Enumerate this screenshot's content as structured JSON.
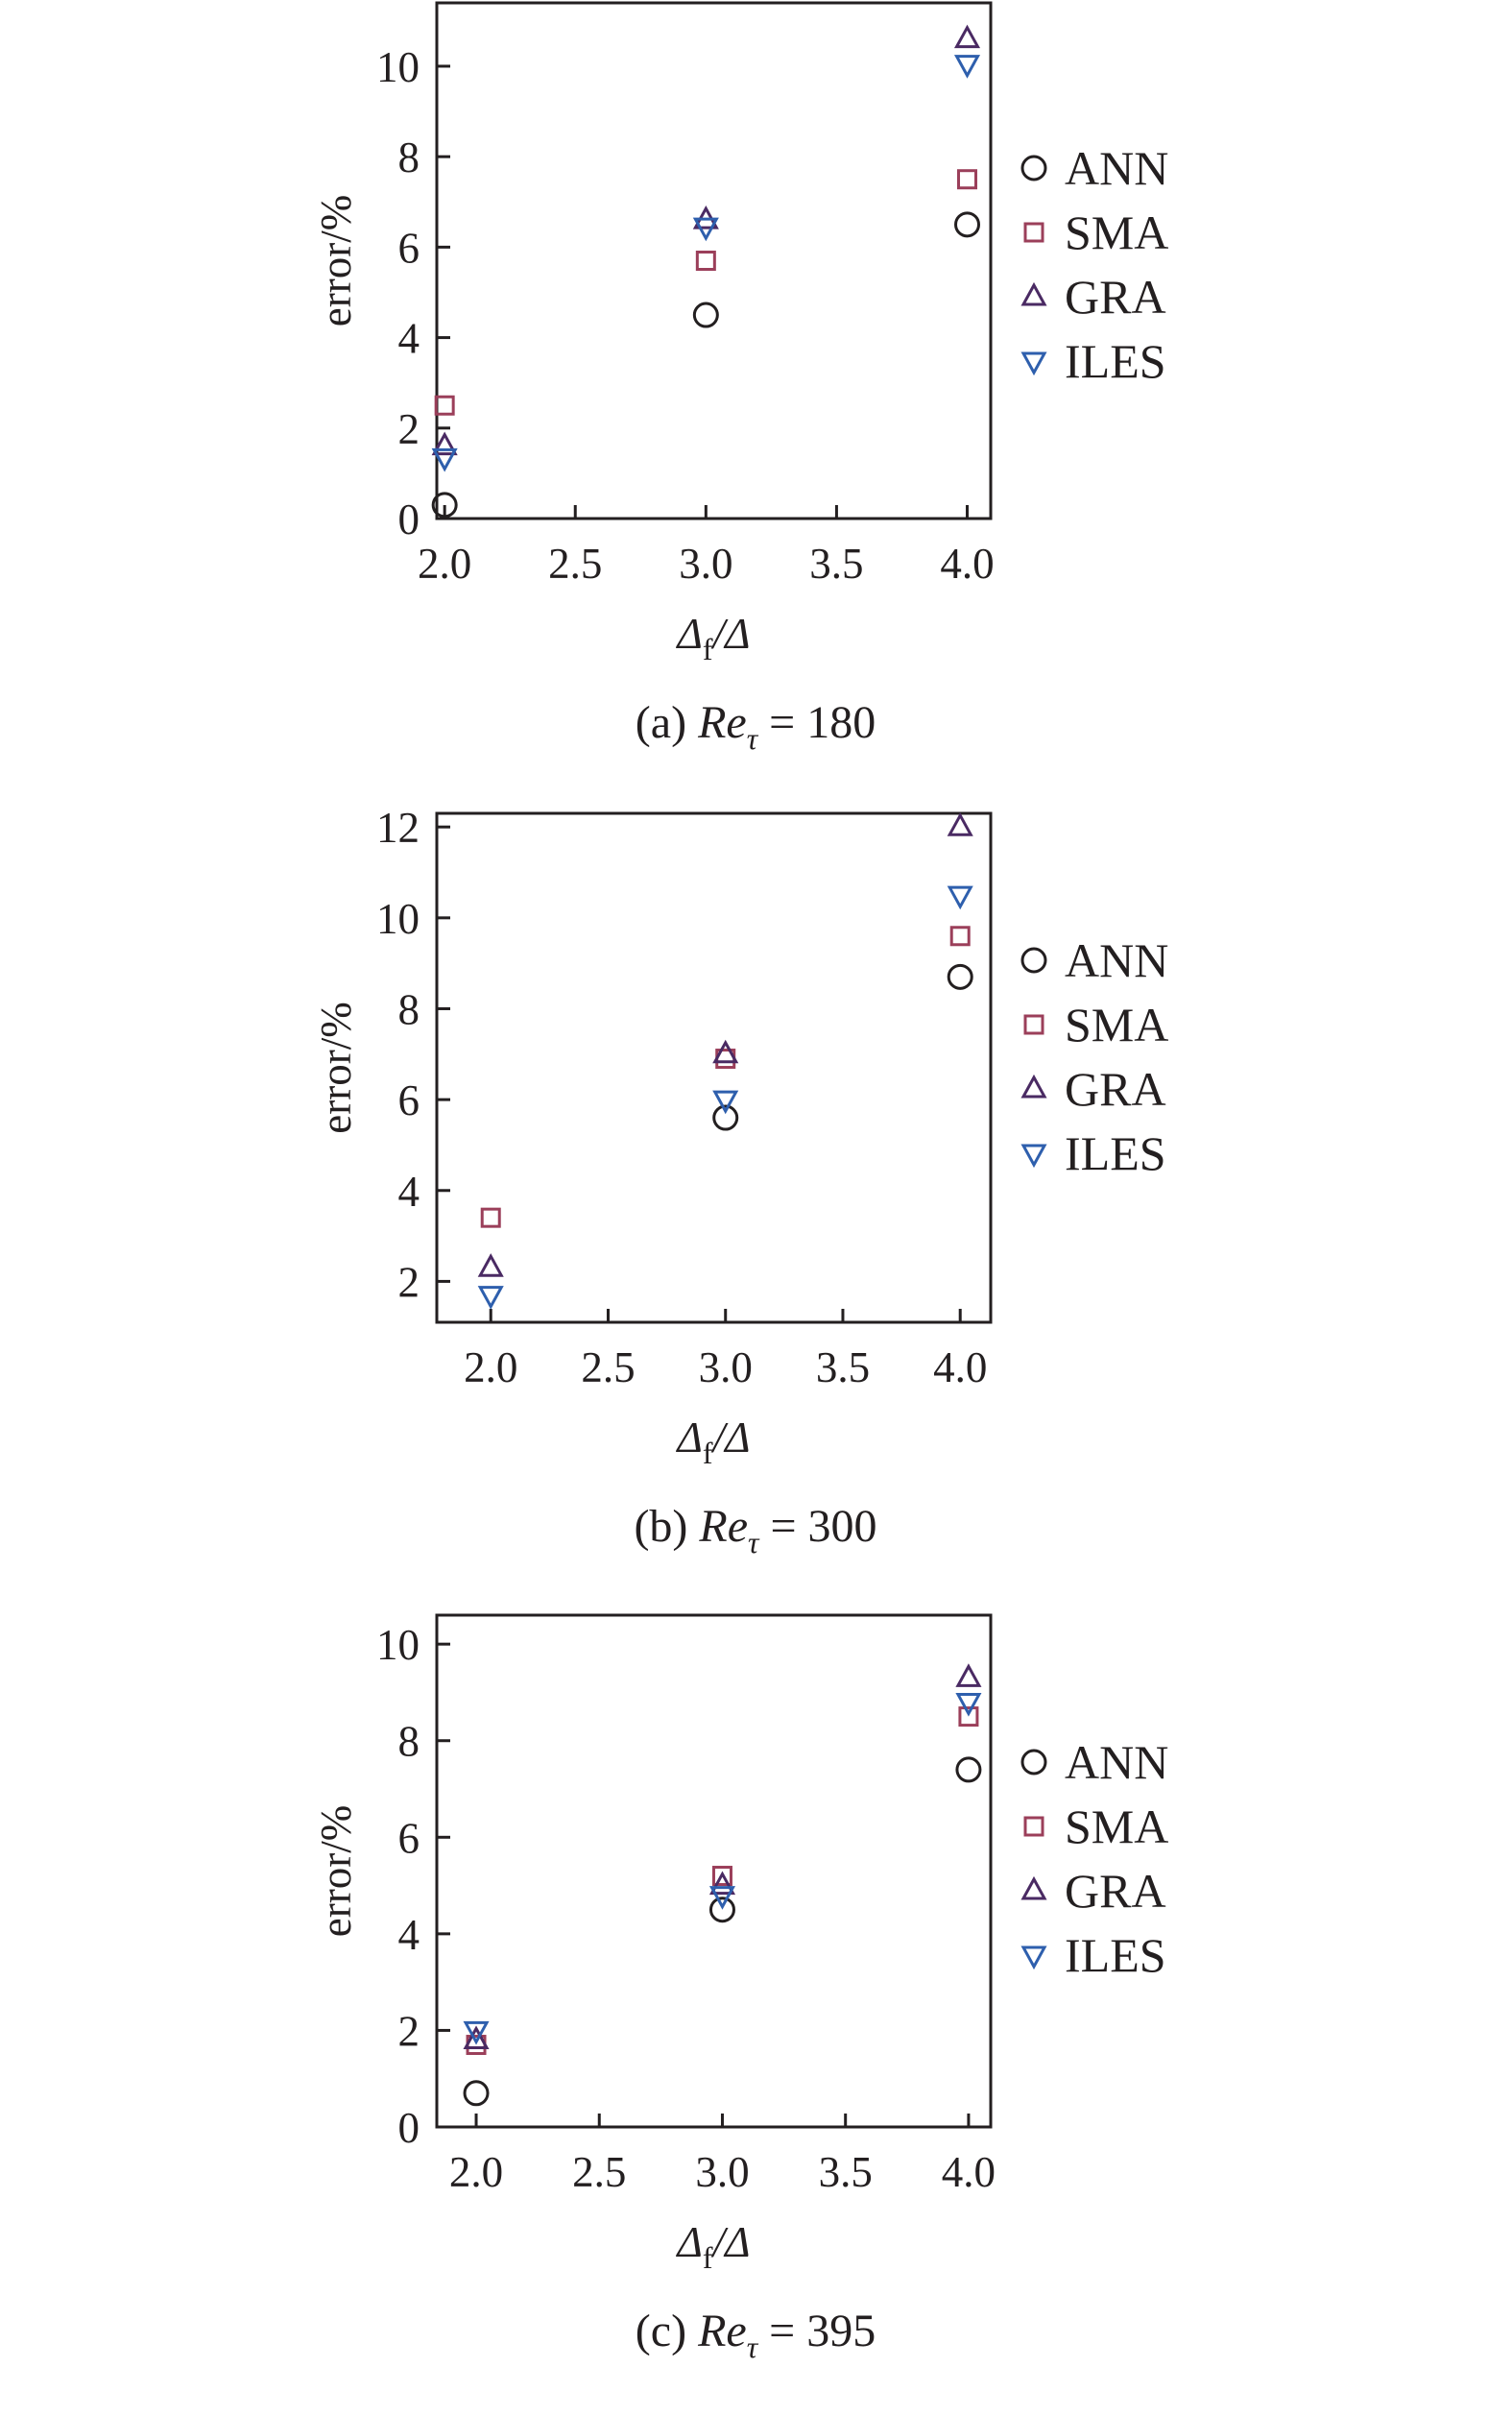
{
  "colors": {
    "ANN": "#231f20",
    "SMA": "#9b3f5a",
    "GRA": "#4a2a63",
    "ILES": "#2e5fad",
    "axis": "#231f20"
  },
  "chart_data": [
    {
      "type": "scatter",
      "panel": "a",
      "caption_prefix": "(a) ",
      "caption_var": "Re",
      "caption_sub": "τ",
      "caption_value": " = 180",
      "ylabel": "error/%",
      "xlabel_main": "Δ",
      "xlabel_sub": "f",
      "xlabel_den": "/Δ",
      "xlim": [
        1.97,
        4.09
      ],
      "ylim": [
        0,
        11.4
      ],
      "xticks": [
        2.0,
        2.5,
        3.0,
        3.5,
        4.0
      ],
      "xtick_labels": [
        "2.0",
        "2.5",
        "3.0",
        "3.5",
        "4.0"
      ],
      "yticks": [
        0,
        2,
        4,
        6,
        8,
        10
      ],
      "ytick_labels": [
        "0",
        "2",
        "4",
        "6",
        "8",
        "10"
      ],
      "legend": "right",
      "x": [
        2.0,
        3.0,
        4.0
      ],
      "series": [
        {
          "name": "ANN",
          "marker": "circle",
          "values": [
            0.3,
            4.5,
            6.5
          ]
        },
        {
          "name": "SMA",
          "marker": "square",
          "values": [
            2.5,
            5.7,
            7.5
          ]
        },
        {
          "name": "GRA",
          "marker": "triangle-up",
          "values": [
            1.6,
            6.6,
            10.6
          ]
        },
        {
          "name": "ILES",
          "marker": "triangle-down",
          "values": [
            1.35,
            6.45,
            10.05
          ]
        }
      ]
    },
    {
      "type": "scatter",
      "panel": "b",
      "caption_prefix": "(b) ",
      "caption_var": "Re",
      "caption_sub": "τ",
      "caption_value": " = 300",
      "ylabel": "error/%",
      "xlabel_main": "Δ",
      "xlabel_sub": "f",
      "xlabel_den": "/Δ",
      "xlim": [
        1.77,
        4.13
      ],
      "ylim": [
        1.1,
        12.3
      ],
      "xticks": [
        2.0,
        2.5,
        3.0,
        3.5,
        4.0
      ],
      "xtick_labels": [
        "2.0",
        "2.5",
        "3.0",
        "3.5",
        "4.0"
      ],
      "yticks": [
        2,
        4,
        6,
        8,
        10,
        12
      ],
      "ytick_labels": [
        "2",
        "4",
        "6",
        "8",
        "10",
        "12"
      ],
      "legend": "right",
      "x": [
        2.0,
        3.0,
        4.0
      ],
      "series": [
        {
          "name": "ANN",
          "marker": "circle",
          "values": [
            null,
            5.6,
            8.7
          ]
        },
        {
          "name": "SMA",
          "marker": "square",
          "values": [
            3.4,
            6.9,
            9.6
          ]
        },
        {
          "name": "GRA",
          "marker": "triangle-up",
          "values": [
            2.3,
            7.0,
            12.0
          ]
        },
        {
          "name": "ILES",
          "marker": "triangle-down",
          "values": [
            1.7,
            6.0,
            10.5
          ]
        }
      ]
    },
    {
      "type": "scatter",
      "panel": "c",
      "caption_prefix": "(c) ",
      "caption_var": "Re",
      "caption_sub": "τ",
      "caption_value": " = 395",
      "ylabel": "error/%",
      "xlabel_main": "Δ",
      "xlabel_sub": "f",
      "xlabel_den": "/Δ",
      "xlim": [
        1.84,
        4.09
      ],
      "ylim": [
        0,
        10.6
      ],
      "xticks": [
        2.0,
        2.5,
        3.0,
        3.5,
        4.0
      ],
      "xtick_labels": [
        "2.0",
        "2.5",
        "3.0",
        "3.5",
        "4.0"
      ],
      "yticks": [
        0,
        2,
        4,
        6,
        8,
        10
      ],
      "ytick_labels": [
        "0",
        "2",
        "4",
        "6",
        "8",
        "10"
      ],
      "legend": "right",
      "x": [
        2.0,
        3.0,
        4.0
      ],
      "series": [
        {
          "name": "ANN",
          "marker": "circle",
          "values": [
            0.7,
            4.5,
            7.4
          ]
        },
        {
          "name": "SMA",
          "marker": "square",
          "values": [
            1.7,
            5.2,
            8.5
          ]
        },
        {
          "name": "GRA",
          "marker": "triangle-up",
          "values": [
            1.8,
            5.0,
            9.3
          ]
        },
        {
          "name": "ILES",
          "marker": "triangle-down",
          "values": [
            2.0,
            4.8,
            8.8
          ]
        }
      ]
    }
  ]
}
